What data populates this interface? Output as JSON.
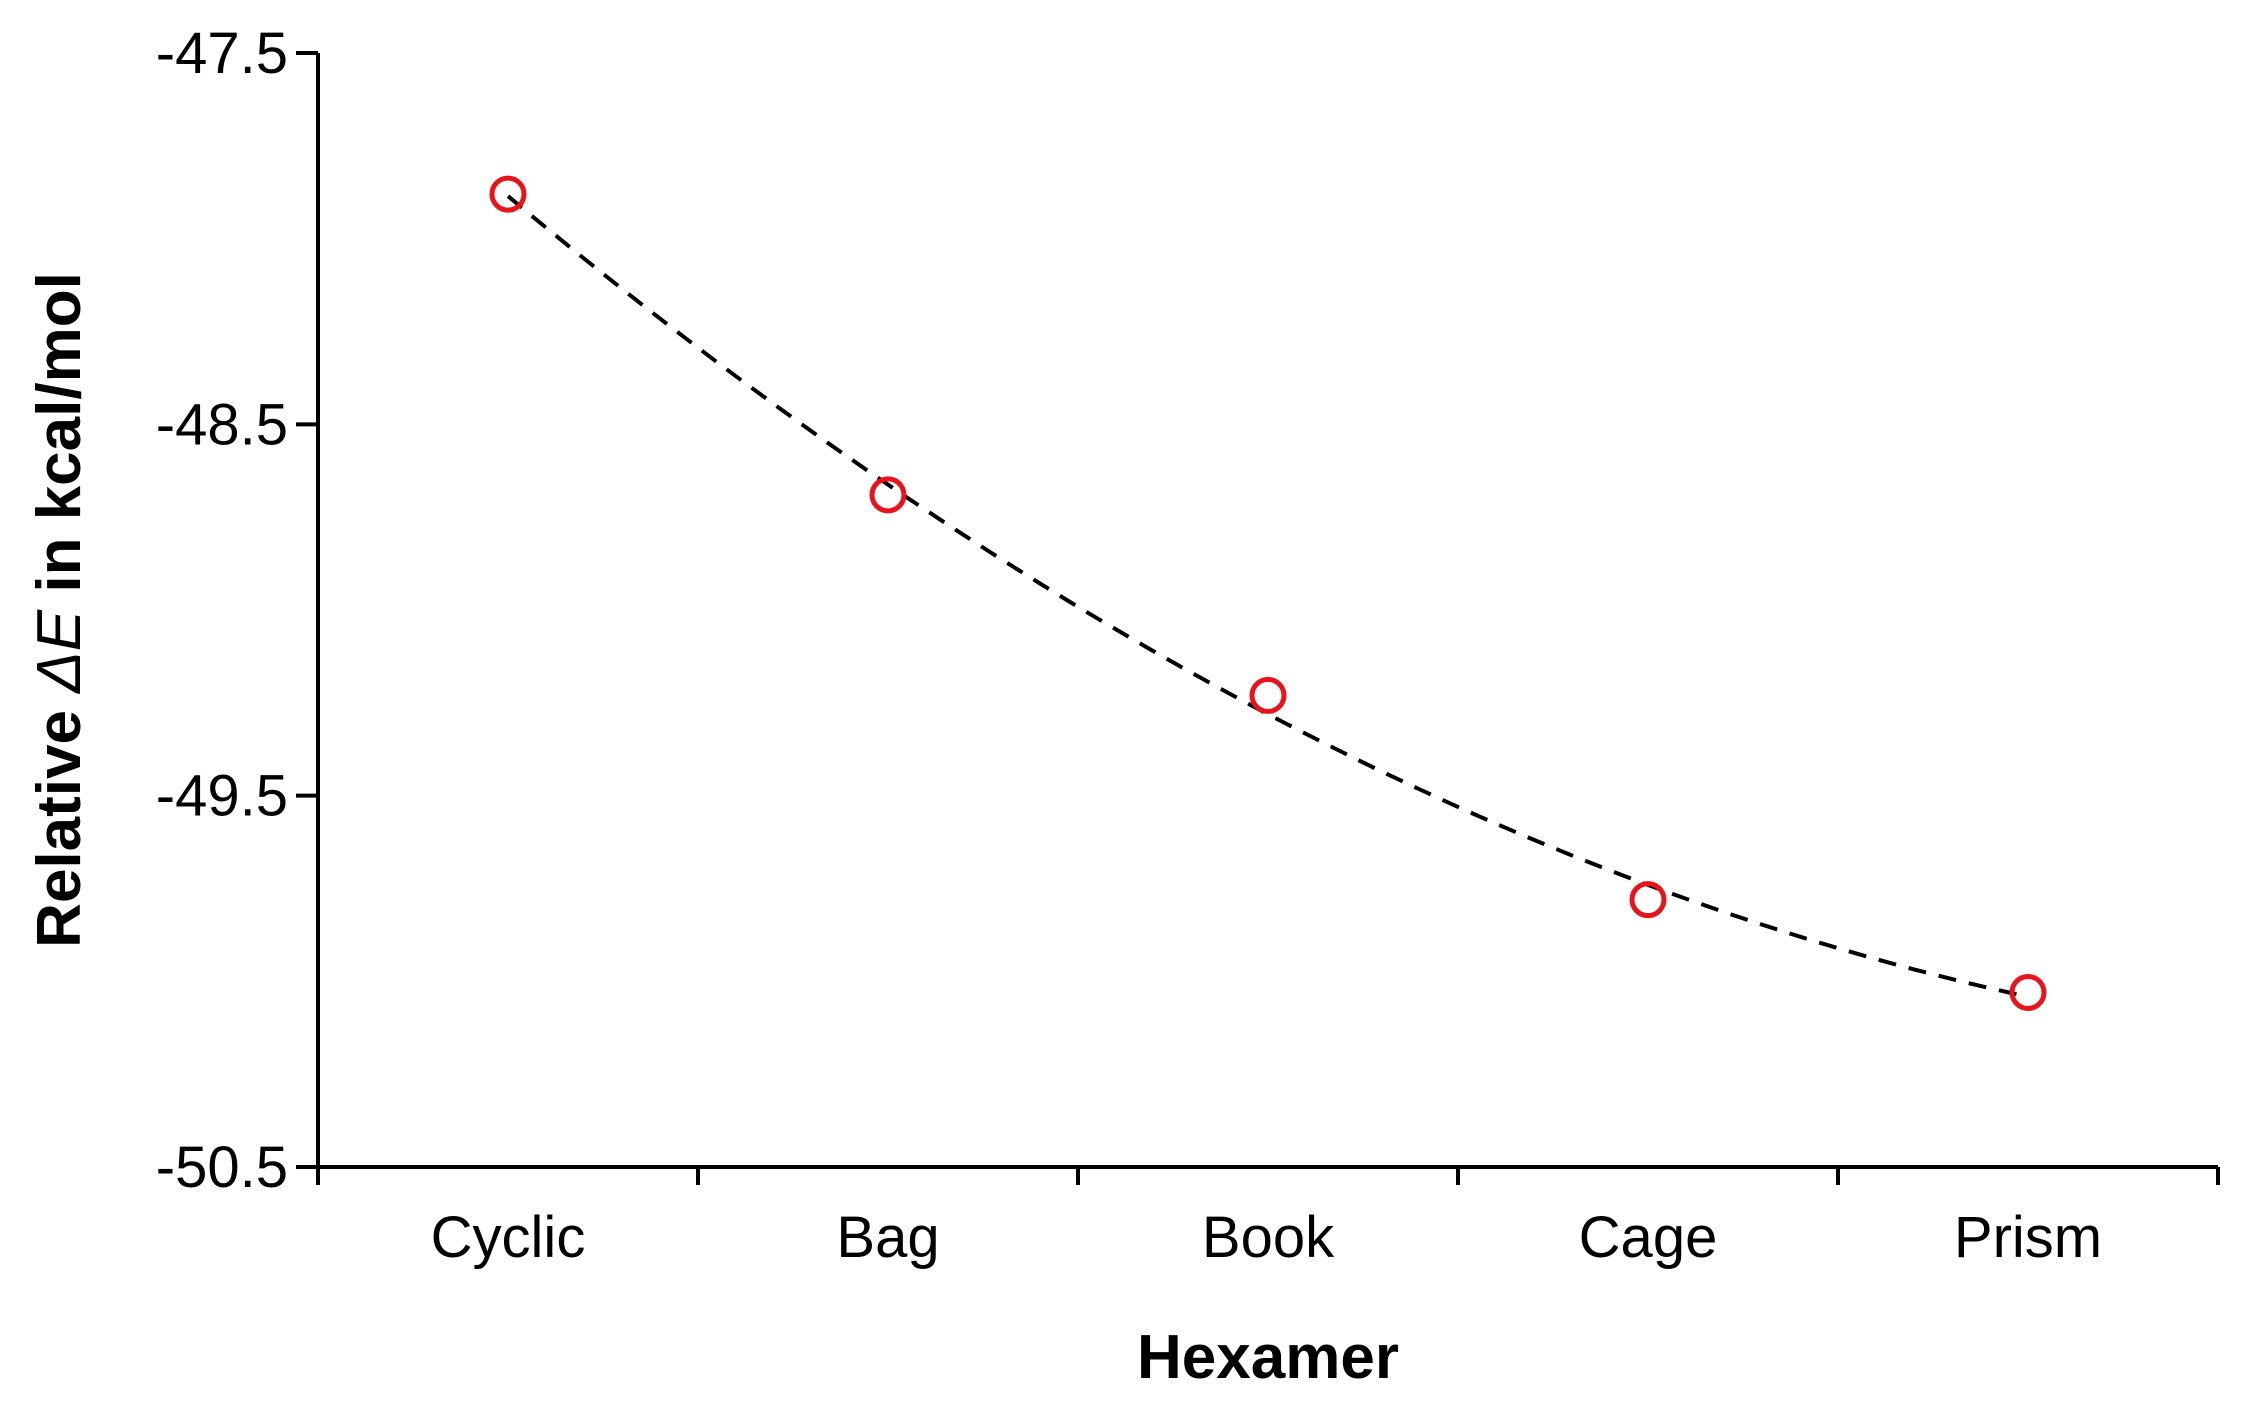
{
  "chart_data": {
    "type": "scatter",
    "categories": [
      "Cyclic",
      "Bag",
      "Book",
      "Cage",
      "Prism"
    ],
    "values": [
      -47.88,
      -48.69,
      -49.23,
      -49.78,
      -50.03
    ],
    "xlabel": "Hexamer",
    "ylabel_prefix": "Relative ",
    "ylabel_symbol": "ΔE",
    "ylabel_suffix": "  in kcal/mol",
    "ylim": [
      -50.5,
      -47.5
    ],
    "yticks": [
      "-47.5",
      "-48.5",
      "-49.5",
      "-50.5"
    ],
    "ytick_values": [
      -47.5,
      -48.5,
      -49.5,
      -50.5
    ],
    "trendline": "polynomial fit (dashed)",
    "marker_color": "#e8141c",
    "trend_color": "#000000",
    "grid": false,
    "legend": "none"
  }
}
